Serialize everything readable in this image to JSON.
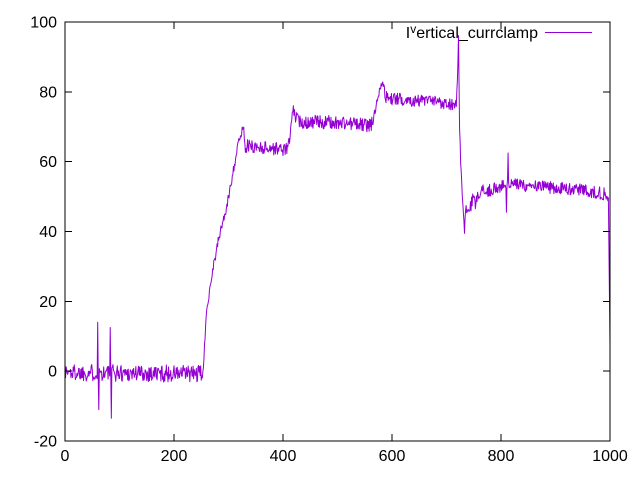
{
  "window": {
    "background": "#ffffff"
  },
  "chart_data": {
    "type": "line",
    "title": "",
    "grid": false,
    "line_color": "#9400d3",
    "axis_color": "#000000",
    "legend": {
      "prefix": "I",
      "superscript": "v",
      "rest": "ertical_currclamp",
      "position": "top-right-inside"
    },
    "x_axis": {
      "label": "",
      "min": 0,
      "max": 1000,
      "ticks": [
        0,
        200,
        400,
        600,
        800,
        1000
      ]
    },
    "y_axis": {
      "label": "",
      "min": -20,
      "max": 100,
      "ticks": [
        -20,
        0,
        20,
        40,
        60,
        80,
        100
      ]
    },
    "sampling_step": 1,
    "noise_seed": 1337,
    "mean_keypoints": [
      [
        0,
        -0.3
      ],
      [
        248,
        -0.8
      ],
      [
        252,
        -1.0
      ],
      [
        254,
        1.0
      ],
      [
        260,
        18.0
      ],
      [
        266,
        24.0
      ],
      [
        272,
        30.0
      ],
      [
        285,
        40.0
      ],
      [
        297,
        47.0
      ],
      [
        308,
        57.0
      ],
      [
        318,
        65.0
      ],
      [
        324,
        68.5
      ],
      [
        327,
        70.0
      ],
      [
        331,
        64.5
      ],
      [
        370,
        64.0
      ],
      [
        406,
        63.5
      ],
      [
        412,
        66.0
      ],
      [
        416,
        72.0
      ],
      [
        419,
        75.0
      ],
      [
        423,
        72.5
      ],
      [
        430,
        71.5
      ],
      [
        470,
        71.3
      ],
      [
        520,
        71.0
      ],
      [
        560,
        70.3
      ],
      [
        566,
        72.0
      ],
      [
        573,
        78.0
      ],
      [
        579,
        82.0
      ],
      [
        583,
        83.0
      ],
      [
        588,
        78.5
      ],
      [
        600,
        78.0
      ],
      [
        650,
        77.5
      ],
      [
        690,
        77.0
      ],
      [
        713,
        76.5
      ],
      [
        718,
        76.5
      ],
      [
        720,
        84.0
      ],
      [
        722,
        95.0
      ],
      [
        724,
        70.0
      ],
      [
        726,
        60.0
      ],
      [
        729,
        50.0
      ],
      [
        731,
        45.0
      ],
      [
        733,
        39.5
      ],
      [
        736,
        48.0
      ],
      [
        739,
        44.5
      ],
      [
        743,
        46.0
      ],
      [
        747,
        49.0
      ],
      [
        752,
        47.5
      ],
      [
        757,
        50.0
      ],
      [
        763,
        51.0
      ],
      [
        775,
        51.5
      ],
      [
        800,
        53.0
      ],
      [
        825,
        53.5
      ],
      [
        860,
        53.0
      ],
      [
        900,
        52.5
      ],
      [
        945,
        52.0
      ],
      [
        975,
        51.2
      ],
      [
        995,
        50.6
      ],
      [
        997,
        50.0
      ],
      [
        1000,
        7.0
      ]
    ],
    "noise_segments": [
      [
        0,
        250,
        2.5
      ],
      [
        250,
        262,
        1.2
      ],
      [
        262,
        326,
        1.4
      ],
      [
        326,
        412,
        1.9
      ],
      [
        412,
        424,
        1.2
      ],
      [
        424,
        566,
        2.0
      ],
      [
        566,
        585,
        1.2
      ],
      [
        585,
        716,
        1.8
      ],
      [
        716,
        736,
        1.2
      ],
      [
        736,
        768,
        2.2
      ],
      [
        768,
        996,
        1.8
      ],
      [
        996,
        1000,
        0.8
      ]
    ],
    "spikes": [
      [
        60,
        14.0
      ],
      [
        62,
        -11.0
      ],
      [
        83,
        12.5
      ],
      [
        85,
        -13.5
      ],
      [
        810,
        45.5
      ],
      [
        813,
        62.5
      ]
    ]
  }
}
